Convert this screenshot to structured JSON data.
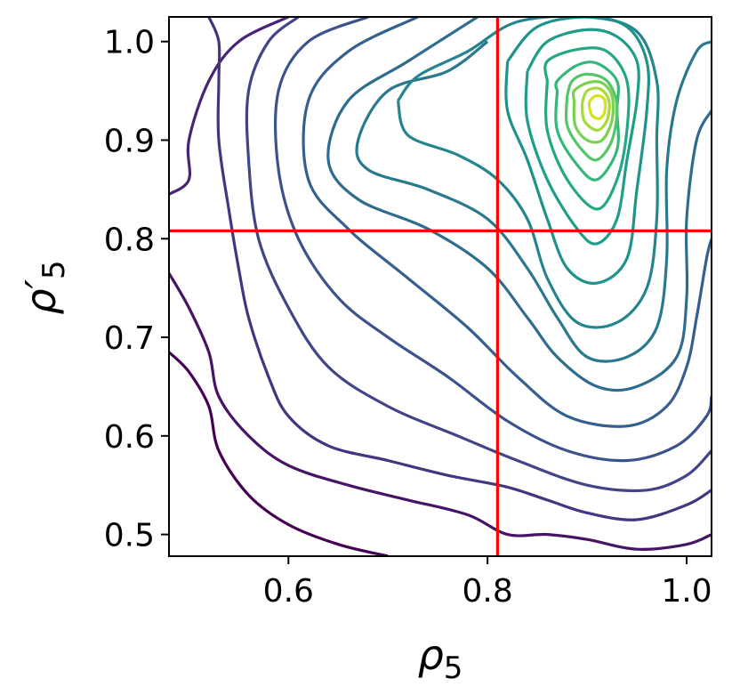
{
  "chart_data": {
    "type": "contour",
    "xlabel_main": "ρ",
    "xlabel_sub": "5",
    "ylabel_main": "ρ′",
    "ylabel_sub": "5",
    "xlim": [
      0.48,
      1.025
    ],
    "ylim": [
      0.478,
      1.025
    ],
    "xticks": [
      {
        "value": 0.6,
        "label": "0.6"
      },
      {
        "value": 0.8,
        "label": "0.8"
      },
      {
        "value": 1.0,
        "label": "1.0"
      }
    ],
    "yticks": [
      {
        "value": 0.5,
        "label": "0.5"
      },
      {
        "value": 0.6,
        "label": "0.6"
      },
      {
        "value": 0.7,
        "label": "0.7"
      },
      {
        "value": 0.8,
        "label": "0.8"
      },
      {
        "value": 0.9,
        "label": "0.9"
      },
      {
        "value": 1.0,
        "label": "1.0"
      }
    ],
    "colormap": "viridis",
    "reference_lines": {
      "vertical_x": 0.81,
      "horizontal_y": 0.808,
      "color": "#ff0000"
    },
    "peak": {
      "x": 0.91,
      "y": 0.935
    },
    "levels": [
      {
        "color": "#440154",
        "points": [
          [
            0.48,
            0.685
          ],
          [
            0.5,
            0.665
          ],
          [
            0.52,
            0.63
          ],
          [
            0.53,
            0.585
          ],
          [
            0.56,
            0.54
          ],
          [
            0.6,
            0.51
          ],
          [
            0.65,
            0.49
          ],
          [
            0.7,
            0.478
          ]
        ]
      },
      {
        "color": "#471365",
        "points": [
          [
            0.48,
            0.765
          ],
          [
            0.5,
            0.73
          ],
          [
            0.52,
            0.685
          ],
          [
            0.53,
            0.64
          ],
          [
            0.56,
            0.6
          ],
          [
            0.6,
            0.57
          ],
          [
            0.66,
            0.55
          ],
          [
            0.72,
            0.535
          ],
          [
            0.78,
            0.52
          ],
          [
            0.82,
            0.5
          ],
          [
            0.86,
            0.5
          ],
          [
            0.9,
            0.495
          ],
          [
            0.95,
            0.485
          ],
          [
            1.0,
            0.49
          ],
          [
            1.025,
            0.5
          ]
        ]
      },
      {
        "color": "#482475",
        "points": [
          [
            0.48,
            0.845
          ],
          [
            0.5,
            0.86
          ],
          [
            0.5,
            0.9
          ],
          [
            0.52,
            0.96
          ],
          [
            0.55,
            1.0
          ],
          [
            0.6,
            1.025
          ]
        ]
      },
      {
        "color": "#463480",
        "points": [
          [
            0.52,
            1.025
          ],
          [
            0.53,
            1.0
          ],
          [
            0.53,
            0.96
          ],
          [
            0.53,
            0.9
          ],
          [
            0.54,
            0.83
          ],
          [
            0.55,
            0.77
          ],
          [
            0.56,
            0.72
          ],
          [
            0.58,
            0.66
          ],
          [
            0.6,
            0.62
          ],
          [
            0.64,
            0.59
          ],
          [
            0.7,
            0.575
          ],
          [
            0.76,
            0.56
          ],
          [
            0.82,
            0.548
          ],
          [
            0.86,
            0.535
          ],
          [
            0.9,
            0.522
          ],
          [
            0.95,
            0.515
          ],
          [
            1.0,
            0.53
          ],
          [
            1.025,
            0.545
          ]
        ]
      },
      {
        "color": "#414487",
        "points": [
          [
            0.61,
            1.025
          ],
          [
            0.58,
            1.0
          ],
          [
            0.56,
            0.95
          ],
          [
            0.56,
            0.88
          ],
          [
            0.57,
            0.8
          ],
          [
            0.6,
            0.73
          ],
          [
            0.64,
            0.67
          ],
          [
            0.7,
            0.63
          ],
          [
            0.77,
            0.6
          ],
          [
            0.83,
            0.575
          ],
          [
            0.9,
            0.55
          ],
          [
            0.96,
            0.545
          ],
          [
            1.0,
            0.56
          ],
          [
            1.025,
            0.585
          ]
        ]
      },
      {
        "color": "#3b528b",
        "points": [
          [
            0.68,
            1.025
          ],
          [
            0.62,
            1.0
          ],
          [
            0.59,
            0.95
          ],
          [
            0.59,
            0.87
          ],
          [
            0.61,
            0.8
          ],
          [
            0.65,
            0.74
          ],
          [
            0.7,
            0.7
          ],
          [
            0.76,
            0.66
          ],
          [
            0.82,
            0.615
          ],
          [
            0.88,
            0.585
          ],
          [
            0.94,
            0.575
          ],
          [
            0.99,
            0.59
          ],
          [
            1.02,
            0.62
          ],
          [
            1.025,
            0.64
          ]
        ]
      },
      {
        "color": "#355f8d",
        "points": [
          [
            0.73,
            1.025
          ],
          [
            0.66,
            0.99
          ],
          [
            0.62,
            0.94
          ],
          [
            0.62,
            0.86
          ],
          [
            0.66,
            0.81
          ],
          [
            0.72,
            0.76
          ],
          [
            0.78,
            0.71
          ],
          [
            0.83,
            0.66
          ],
          [
            0.88,
            0.62
          ],
          [
            0.94,
            0.61
          ],
          [
            0.98,
            0.63
          ],
          [
            1.0,
            0.67
          ],
          [
            1.01,
            0.72
          ],
          [
            1.02,
            0.78
          ],
          [
            1.025,
            0.8
          ]
        ]
      },
      {
        "color": "#2f6c8e",
        "points": [
          [
            0.79,
            1.025
          ],
          [
            0.72,
            0.98
          ],
          [
            0.66,
            0.94
          ],
          [
            0.64,
            0.88
          ],
          [
            0.67,
            0.84
          ],
          [
            0.74,
            0.81
          ],
          [
            0.8,
            0.77
          ],
          [
            0.84,
            0.72
          ],
          [
            0.87,
            0.68
          ],
          [
            0.91,
            0.65
          ],
          [
            0.95,
            0.65
          ],
          [
            0.99,
            0.68
          ],
          [
            1.0,
            0.74
          ],
          [
            1.0,
            0.82
          ],
          [
            1.01,
            0.9
          ],
          [
            1.025,
            0.93
          ]
        ]
      },
      {
        "color": "#2a788e",
        "points": [
          [
            0.8,
            1.0
          ],
          [
            0.76,
            0.97
          ],
          [
            0.7,
            0.95
          ],
          [
            0.67,
            0.9
          ],
          [
            0.68,
            0.87
          ],
          [
            0.74,
            0.85
          ],
          [
            0.8,
            0.82
          ],
          [
            0.84,
            0.77
          ],
          [
            0.87,
            0.72
          ],
          [
            0.9,
            0.68
          ],
          [
            0.94,
            0.68
          ],
          [
            0.97,
            0.71
          ],
          [
            0.98,
            0.78
          ],
          [
            0.98,
            0.87
          ],
          [
            0.99,
            0.94
          ],
          [
            1.01,
            0.99
          ],
          [
            1.025,
            1.0
          ]
        ]
      },
      {
        "color": "#25858e",
        "points": [
          [
            0.71,
            0.94
          ],
          [
            0.72,
            0.905
          ],
          [
            0.77,
            0.885
          ],
          [
            0.81,
            0.86
          ],
          [
            0.84,
            0.82
          ],
          [
            0.86,
            0.76
          ],
          [
            0.89,
            0.715
          ],
          [
            0.93,
            0.715
          ],
          [
            0.96,
            0.75
          ],
          [
            0.97,
            0.82
          ],
          [
            0.97,
            0.9
          ],
          [
            0.97,
            0.96
          ],
          [
            0.95,
            1.01
          ],
          [
            0.9,
            1.025
          ],
          [
            0.83,
            1.02
          ],
          [
            0.78,
            0.99
          ],
          [
            0.73,
            0.965
          ],
          [
            0.71,
            0.94
          ]
        ]
      },
      {
        "color": "#1f928c",
        "points": [
          [
            0.82,
            0.98
          ],
          [
            0.82,
            0.93
          ],
          [
            0.84,
            0.88
          ],
          [
            0.86,
            0.82
          ],
          [
            0.88,
            0.77
          ],
          [
            0.91,
            0.755
          ],
          [
            0.94,
            0.78
          ],
          [
            0.95,
            0.85
          ],
          [
            0.96,
            0.93
          ],
          [
            0.96,
            0.98
          ],
          [
            0.94,
            1.015
          ],
          [
            0.9,
            1.025
          ],
          [
            0.85,
            1.015
          ],
          [
            0.82,
            0.98
          ]
        ]
      },
      {
        "color": "#1e9e89",
        "points": [
          [
            0.84,
            0.97
          ],
          [
            0.84,
            0.92
          ],
          [
            0.86,
            0.86
          ],
          [
            0.89,
            0.81
          ],
          [
            0.91,
            0.795
          ],
          [
            0.93,
            0.82
          ],
          [
            0.94,
            0.88
          ],
          [
            0.95,
            0.94
          ],
          [
            0.95,
            0.98
          ],
          [
            0.93,
            1.005
          ],
          [
            0.9,
            1.012
          ],
          [
            0.86,
            1.0
          ],
          [
            0.84,
            0.97
          ]
        ]
      },
      {
        "color": "#22a884",
        "points": [
          [
            0.86,
            0.96
          ],
          [
            0.86,
            0.91
          ],
          [
            0.88,
            0.86
          ],
          [
            0.91,
            0.83
          ],
          [
            0.93,
            0.86
          ],
          [
            0.94,
            0.91
          ],
          [
            0.94,
            0.96
          ],
          [
            0.92,
            0.99
          ],
          [
            0.89,
            0.992
          ],
          [
            0.86,
            0.98
          ],
          [
            0.86,
            0.96
          ]
        ]
      },
      {
        "color": "#35b779",
        "points": [
          [
            0.87,
            0.95
          ],
          [
            0.87,
            0.91
          ],
          [
            0.89,
            0.875
          ],
          [
            0.91,
            0.86
          ],
          [
            0.93,
            0.89
          ],
          [
            0.93,
            0.93
          ],
          [
            0.93,
            0.96
          ],
          [
            0.91,
            0.978
          ],
          [
            0.89,
            0.976
          ],
          [
            0.87,
            0.96
          ],
          [
            0.87,
            0.95
          ]
        ]
      },
      {
        "color": "#54c568",
        "points": [
          [
            0.88,
            0.945
          ],
          [
            0.88,
            0.915
          ],
          [
            0.895,
            0.89
          ],
          [
            0.91,
            0.88
          ],
          [
            0.925,
            0.9
          ],
          [
            0.93,
            0.935
          ],
          [
            0.92,
            0.96
          ],
          [
            0.9,
            0.967
          ],
          [
            0.885,
            0.96
          ],
          [
            0.88,
            0.945
          ]
        ]
      },
      {
        "color": "#7ad151",
        "points": [
          [
            0.887,
            0.94
          ],
          [
            0.888,
            0.915
          ],
          [
            0.9,
            0.9
          ],
          [
            0.915,
            0.9
          ],
          [
            0.925,
            0.92
          ],
          [
            0.925,
            0.945
          ],
          [
            0.915,
            0.958
          ],
          [
            0.9,
            0.958
          ],
          [
            0.887,
            0.95
          ],
          [
            0.887,
            0.94
          ]
        ]
      },
      {
        "color": "#a5db36",
        "points": [
          [
            0.895,
            0.938
          ],
          [
            0.897,
            0.92
          ],
          [
            0.91,
            0.91
          ],
          [
            0.92,
            0.92
          ],
          [
            0.922,
            0.94
          ],
          [
            0.913,
            0.952
          ],
          [
            0.9,
            0.95
          ],
          [
            0.895,
            0.938
          ]
        ]
      },
      {
        "color": "#d2e21b",
        "points": [
          [
            0.902,
            0.935
          ],
          [
            0.905,
            0.925
          ],
          [
            0.913,
            0.922
          ],
          [
            0.918,
            0.93
          ],
          [
            0.917,
            0.942
          ],
          [
            0.909,
            0.945
          ],
          [
            0.903,
            0.94
          ],
          [
            0.902,
            0.935
          ]
        ]
      }
    ]
  }
}
